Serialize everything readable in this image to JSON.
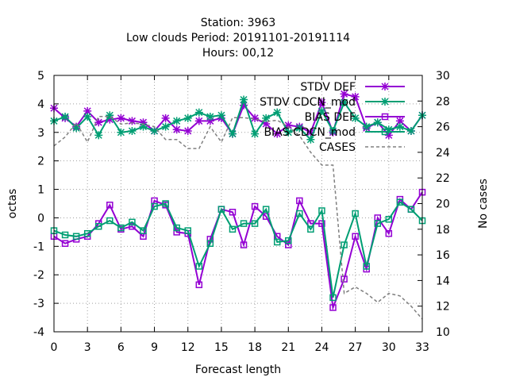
{
  "chart_data": {
    "type": "line",
    "title_lines": [
      "Station:      3963",
      "Low clouds   Period: 20191101-20191114",
      "Hours:  00,12"
    ],
    "xlabel": "Forecast length",
    "ylabel": "octas",
    "y2label": "No cases",
    "xlim": [
      0,
      33
    ],
    "ylim": [
      -4,
      5
    ],
    "y2lim": [
      10,
      30
    ],
    "xticks": [
      0,
      3,
      6,
      9,
      12,
      15,
      18,
      21,
      24,
      27,
      30,
      33
    ],
    "yticks": [
      -4,
      -3,
      -2,
      -1,
      0,
      1,
      2,
      3,
      4,
      5
    ],
    "y2ticks": [
      10,
      12,
      14,
      16,
      18,
      20,
      22,
      24,
      26,
      28,
      30
    ],
    "grid": true,
    "legend_position": "top-right",
    "x": [
      0,
      1,
      2,
      3,
      4,
      5,
      6,
      7,
      8,
      9,
      10,
      11,
      12,
      13,
      14,
      15,
      16,
      17,
      18,
      19,
      20,
      21,
      22,
      23,
      24,
      25,
      26,
      27,
      28,
      29,
      30,
      31,
      32,
      33
    ],
    "series": [
      {
        "name": "STDV DEF",
        "color": "#9400d3",
        "marker": "x-star",
        "axis": "y1",
        "values": [
          3.85,
          3.5,
          3.2,
          3.75,
          3.35,
          3.45,
          3.5,
          3.4,
          3.35,
          3.05,
          3.5,
          3.1,
          3.05,
          3.4,
          3.4,
          3.5,
          2.95,
          3.95,
          3.5,
          3.3,
          2.95,
          3.25,
          3.2,
          3.0,
          4.05,
          3.0,
          4.35,
          4.25,
          3.15,
          3.35,
          2.9,
          3.4,
          3.05,
          3.6
        ]
      },
      {
        "name": "STDV CDCN_mod",
        "color": "#009e73",
        "marker": "x-star",
        "axis": "y1",
        "values": [
          3.4,
          3.55,
          3.15,
          3.55,
          2.9,
          3.6,
          3.0,
          3.05,
          3.2,
          3.05,
          3.2,
          3.4,
          3.5,
          3.7,
          3.55,
          3.6,
          2.95,
          4.15,
          2.95,
          3.5,
          3.7,
          3.0,
          3.15,
          2.75,
          3.75,
          3.05,
          4.05,
          3.5,
          3.2,
          3.35,
          3.1,
          3.2,
          3.05,
          3.6
        ]
      },
      {
        "name": "BIAS DEF",
        "color": "#9400d3",
        "marker": "square",
        "axis": "y1",
        "values": [
          -0.65,
          -0.9,
          -0.75,
          -0.65,
          -0.2,
          0.45,
          -0.4,
          -0.3,
          -0.65,
          0.6,
          0.45,
          -0.5,
          -0.55,
          -2.35,
          -0.75,
          0.3,
          0.2,
          -0.95,
          0.4,
          0.05,
          -0.65,
          -0.95,
          0.6,
          -0.2,
          -0.2,
          -3.15,
          -2.15,
          -0.65,
          -1.8,
          0.0,
          -0.55,
          0.65,
          0.3,
          0.9
        ]
      },
      {
        "name": "BIAS CDCN_mod",
        "color": "#009e73",
        "marker": "square",
        "axis": "y1",
        "values": [
          -0.45,
          -0.6,
          -0.65,
          -0.55,
          -0.3,
          -0.1,
          -0.35,
          -0.15,
          -0.45,
          0.4,
          0.5,
          -0.35,
          -0.45,
          -1.7,
          -0.9,
          0.3,
          -0.4,
          -0.2,
          -0.2,
          0.3,
          -0.85,
          -0.8,
          0.15,
          -0.4,
          0.25,
          -2.8,
          -0.95,
          0.15,
          -1.7,
          -0.2,
          -0.05,
          0.55,
          0.3,
          -0.1
        ]
      },
      {
        "name": "CASES",
        "color": "#808080",
        "marker": "none",
        "dash": true,
        "axis": "y2",
        "values": [
          24.5,
          25.2,
          26.3,
          24.8,
          26.8,
          26.8,
          26.2,
          26.3,
          26.2,
          26.0,
          25.0,
          25.0,
          24.3,
          24.3,
          26.0,
          24.8,
          26.7,
          26.7,
          26.6,
          26.4,
          26.5,
          26.0,
          25.3,
          24.0,
          23.0,
          23.0,
          13.0,
          13.5,
          13.0,
          12.3,
          13.0,
          12.8,
          12.0,
          11.0
        ]
      }
    ]
  }
}
